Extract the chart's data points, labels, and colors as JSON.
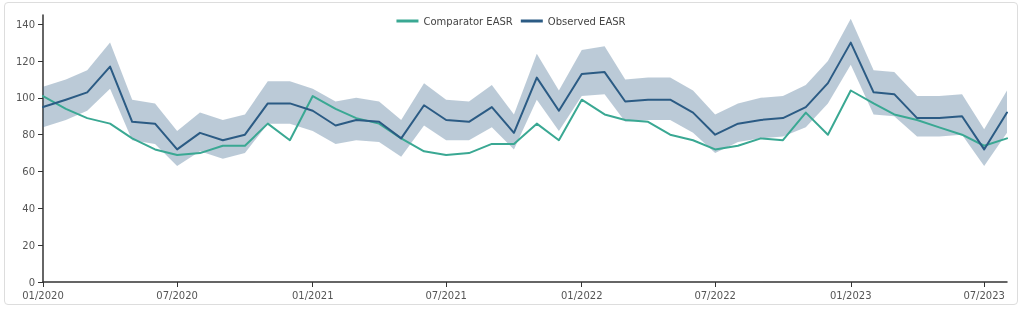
{
  "chart_data": {
    "type": "line",
    "x": [
      "2020-01",
      "2020-02",
      "2020-03",
      "2020-04",
      "2020-05",
      "2020-06",
      "2020-07",
      "2020-08",
      "2020-09",
      "2020-10",
      "2020-11",
      "2020-12",
      "2021-01",
      "2021-02",
      "2021-03",
      "2021-04",
      "2021-05",
      "2021-06",
      "2021-07",
      "2021-08",
      "2021-09",
      "2021-10",
      "2021-11",
      "2021-12",
      "2022-01",
      "2022-02",
      "2022-03",
      "2022-04",
      "2022-05",
      "2022-06",
      "2022-07",
      "2022-08",
      "2022-09",
      "2022-10",
      "2022-11",
      "2022-12",
      "2023-01",
      "2023-02",
      "2023-03",
      "2023-04",
      "2023-05",
      "2023-06",
      "2023-07",
      "2023-08"
    ],
    "series": [
      {
        "name": "Comparator EASR",
        "color": "#3aa893",
        "values": [
          101,
          94,
          89,
          86,
          78,
          72,
          69,
          70,
          74,
          74,
          86,
          77,
          101,
          94,
          89,
          86,
          78,
          71,
          69,
          70,
          75,
          75,
          86,
          77,
          99,
          91,
          88,
          87,
          80,
          77,
          72,
          74,
          78,
          77,
          92,
          80,
          104,
          97,
          91,
          88,
          84,
          80,
          74,
          78
        ]
      },
      {
        "name": "Observed EASR",
        "color": "#2b5b84",
        "values": [
          95,
          99,
          103,
          117,
          87,
          86,
          72,
          81,
          77,
          80,
          97,
          97,
          93,
          85,
          88,
          87,
          78,
          96,
          88,
          87,
          95,
          81,
          111,
          93,
          113,
          114,
          98,
          99,
          99,
          92,
          80,
          86,
          88,
          89,
          95,
          108,
          130,
          103,
          102,
          89,
          89,
          90,
          72,
          92
        ],
        "lower": [
          84,
          88,
          93,
          105,
          77,
          75,
          63,
          71,
          67,
          70,
          86,
          86,
          82,
          75,
          77,
          76,
          68,
          85,
          77,
          77,
          84,
          72,
          99,
          82,
          101,
          102,
          87,
          88,
          88,
          81,
          70,
          76,
          78,
          79,
          84,
          97,
          118,
          91,
          90,
          79,
          79,
          80,
          63,
          81
        ],
        "upper": [
          106,
          110,
          115,
          130,
          99,
          97,
          82,
          92,
          88,
          91,
          109,
          109,
          105,
          98,
          100,
          98,
          88,
          108,
          99,
          98,
          107,
          91,
          124,
          104,
          126,
          128,
          110,
          111,
          111,
          104,
          91,
          97,
          100,
          101,
          107,
          120,
          143,
          115,
          114,
          101,
          101,
          102,
          83,
          104
        ]
      }
    ],
    "xlim": [
      "2020-01",
      "2023-08"
    ],
    "xticks": [
      {
        "value": "2020-01",
        "label": "01/2020"
      },
      {
        "value": "2020-07",
        "label": "07/2020"
      },
      {
        "value": "2021-01",
        "label": "01/2021"
      },
      {
        "value": "2021-07",
        "label": "07/2021"
      },
      {
        "value": "2022-01",
        "label": "01/2022"
      },
      {
        "value": "2022-07",
        "label": "07/2022"
      },
      {
        "value": "2023-01",
        "label": "01/2023"
      },
      {
        "value": "2023-07",
        "label": "07/2023"
      }
    ],
    "ylim": [
      0,
      145
    ],
    "yticks": [
      0,
      20,
      40,
      60,
      80,
      100,
      120,
      140
    ],
    "grid": false,
    "legend": "top",
    "marker": "none",
    "line_style": "solid"
  }
}
